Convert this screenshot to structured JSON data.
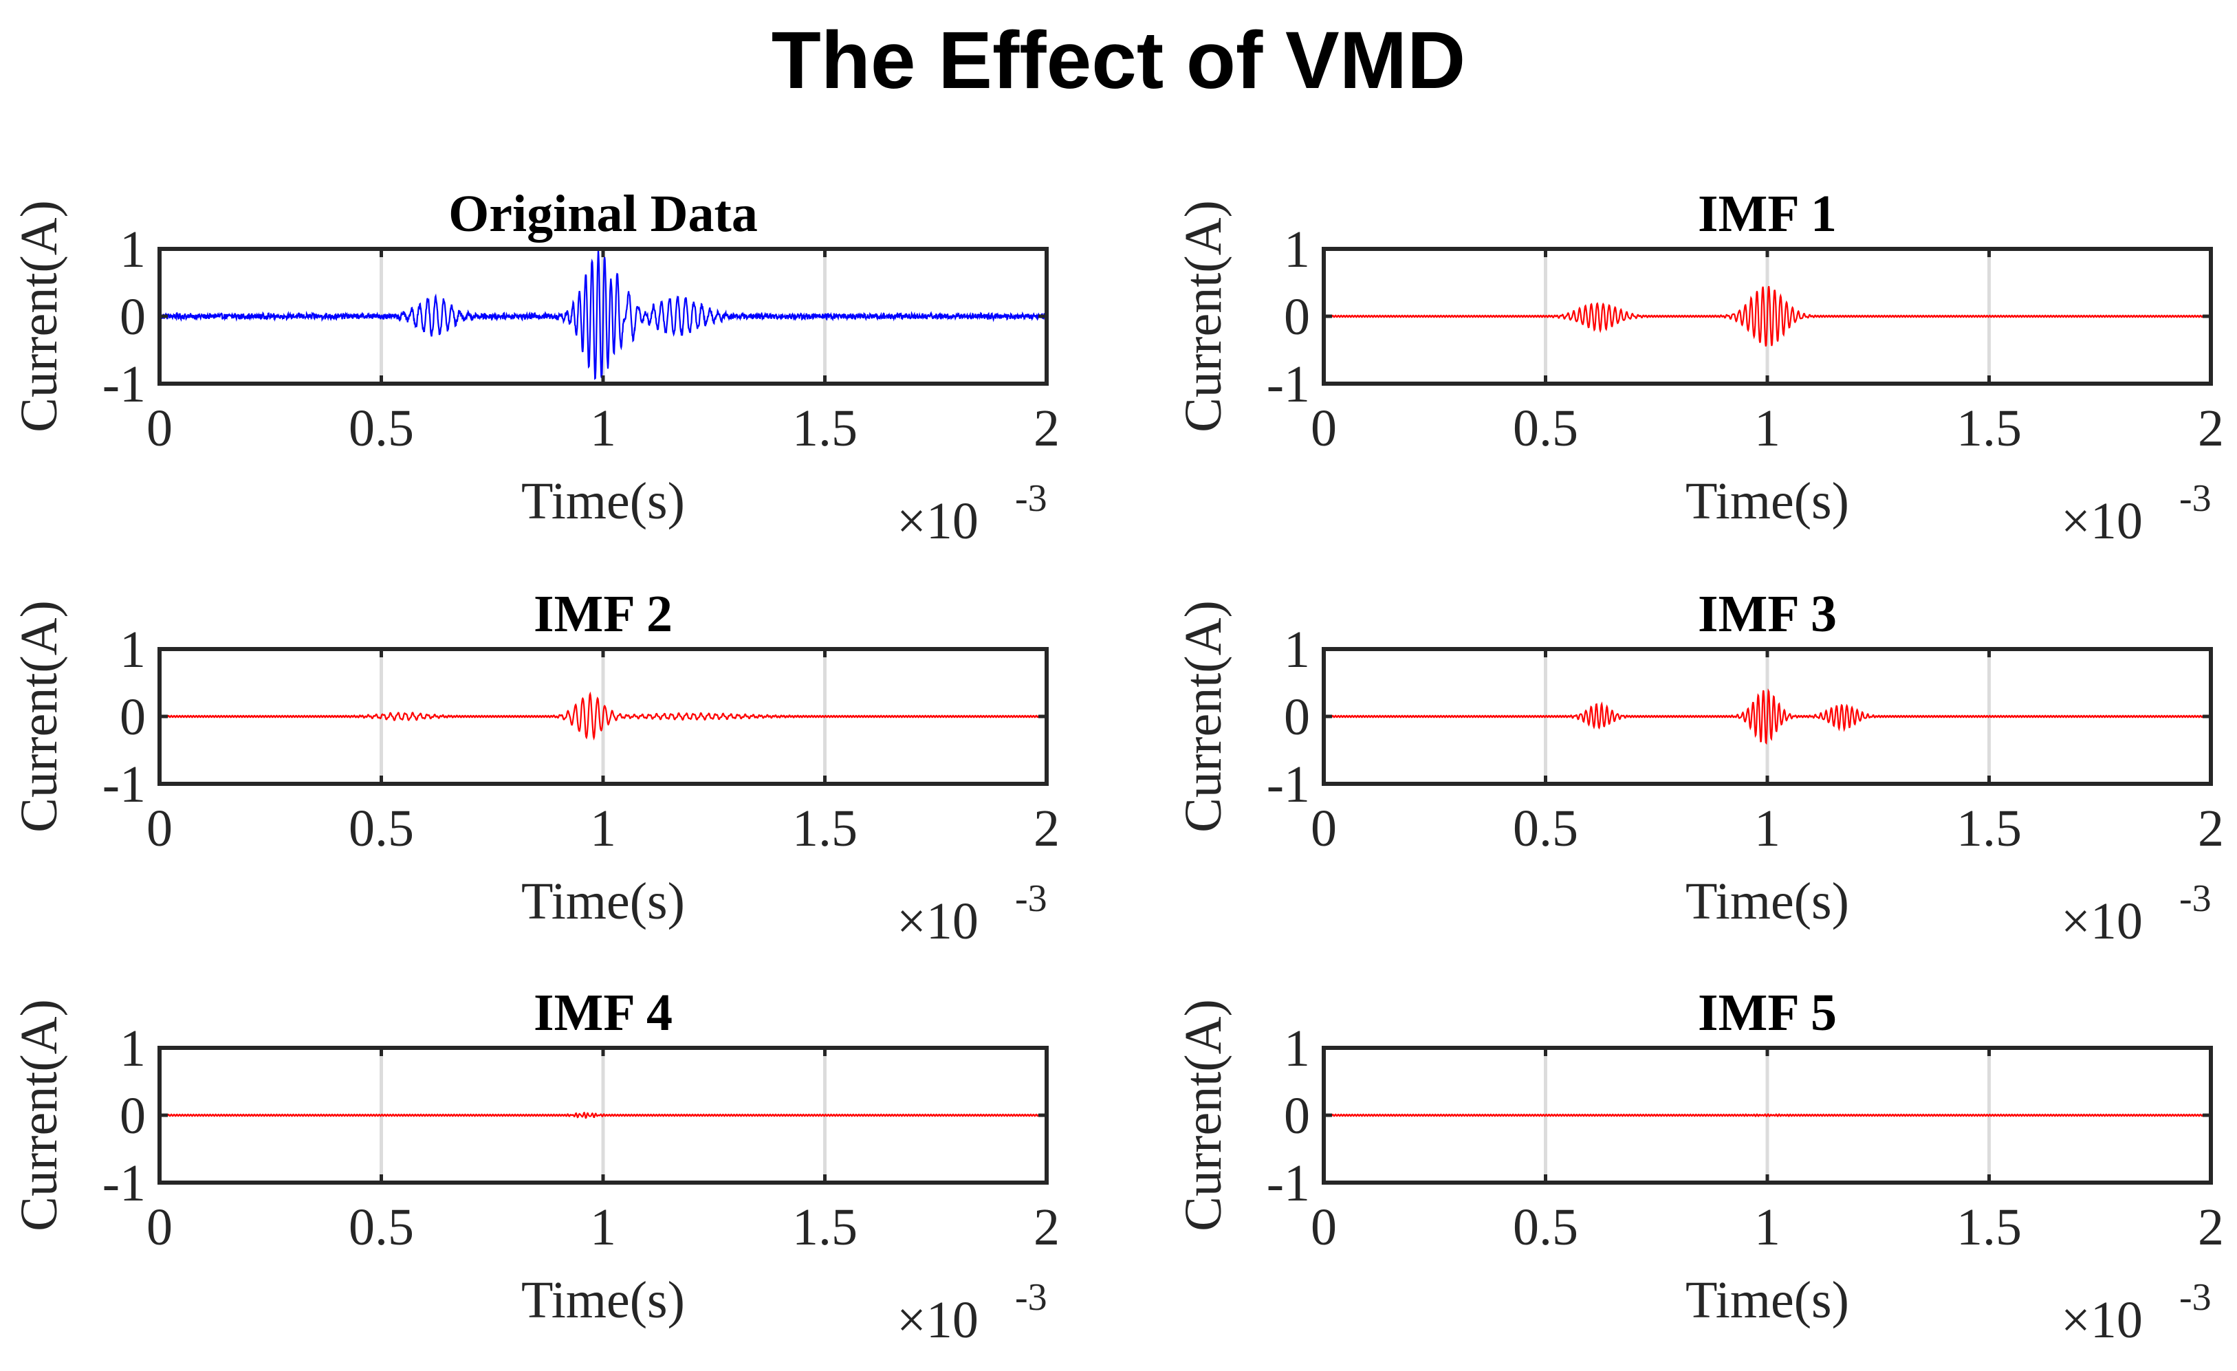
{
  "figure": {
    "title": "The Effect of VMD"
  },
  "chart_data": [
    {
      "type": "line",
      "title": "Original Data",
      "xlabel": "Time(s)",
      "ylabel": "Current(A)",
      "x_multiplier_label": "×10",
      "x_multiplier_exp": "-3",
      "xlim": [
        0,
        2
      ],
      "ylim": [
        -1,
        1
      ],
      "xticks": [
        0,
        0.5,
        1,
        1.5,
        2
      ],
      "xtick_labels": [
        "0",
        "0.5",
        "1",
        "1.5",
        "2"
      ],
      "yticks": [
        -1,
        0,
        1
      ],
      "ytick_labels": [
        "-1",
        "0",
        "1"
      ],
      "grid": "x-only",
      "series": [
        {
          "name": "Original Data",
          "color": "#0000ff",
          "noise": 0.035,
          "packets": [
            [
              0.62,
              0.05,
              0.28,
              55
            ],
            [
              0.99,
              0.045,
              0.95,
              70
            ],
            [
              1.17,
              0.07,
              0.28,
              55
            ],
            [
              1.05,
              0.03,
              0.35,
              40
            ]
          ]
        }
      ]
    },
    {
      "type": "line",
      "title": "IMF 1",
      "xlabel": "Time(s)",
      "ylabel": "Current(A)",
      "x_multiplier_label": "×10",
      "x_multiplier_exp": "-3",
      "xlim": [
        0,
        2
      ],
      "ylim": [
        -1,
        1
      ],
      "xticks": [
        0,
        0.5,
        1,
        1.5,
        2
      ],
      "xtick_labels": [
        "0",
        "0.5",
        "1",
        "1.5",
        "2"
      ],
      "yticks": [
        -1,
        0,
        1
      ],
      "ytick_labels": [
        "-1",
        "0",
        "1"
      ],
      "grid": "x-only",
      "series": [
        {
          "name": "IMF 1",
          "color": "#ff0000",
          "noise": 0.0,
          "packets": [
            [
              0.62,
              0.055,
              0.2,
              75
            ],
            [
              1.0,
              0.05,
              0.45,
              75
            ]
          ]
        }
      ]
    },
    {
      "type": "line",
      "title": "IMF 2",
      "xlabel": "Time(s)",
      "ylabel": "Current(A)",
      "x_multiplier_label": "×10",
      "x_multiplier_exp": "-3",
      "xlim": [
        0,
        2
      ],
      "ylim": [
        -1,
        1
      ],
      "xticks": [
        0,
        0.5,
        1,
        1.5,
        2
      ],
      "xtick_labels": [
        "0",
        "0.5",
        "1",
        "1.5",
        "2"
      ],
      "yticks": [
        -1,
        0,
        1
      ],
      "ytick_labels": [
        "-1",
        "0",
        "1"
      ],
      "grid": "x-only",
      "series": [
        {
          "name": "IMF 2",
          "color": "#ff0000",
          "noise": 0.0,
          "packets": [
            [
              0.55,
              0.07,
              0.05,
              60
            ],
            [
              0.97,
              0.04,
              0.32,
              60
            ],
            [
              1.2,
              0.15,
              0.04,
              60
            ]
          ]
        }
      ]
    },
    {
      "type": "line",
      "title": "IMF 3",
      "xlabel": "Time(s)",
      "ylabel": "Current(A)",
      "x_multiplier_label": "×10",
      "x_multiplier_exp": "-3",
      "xlim": [
        0,
        2
      ],
      "ylim": [
        -1,
        1
      ],
      "xticks": [
        0,
        0.5,
        1,
        1.5,
        2
      ],
      "xtick_labels": [
        "0",
        "0.5",
        "1",
        "1.5",
        "2"
      ],
      "yticks": [
        -1,
        0,
        1
      ],
      "ytick_labels": [
        "-1",
        "0",
        "1"
      ],
      "grid": "x-only",
      "series": [
        {
          "name": "IMF 3",
          "color": "#ff0000",
          "noise": 0.0,
          "packets": [
            [
              0.62,
              0.035,
              0.18,
              85
            ],
            [
              0.995,
              0.035,
              0.4,
              85
            ],
            [
              1.17,
              0.04,
              0.18,
              85
            ]
          ]
        }
      ]
    },
    {
      "type": "line",
      "title": "IMF 4",
      "xlabel": "Time(s)",
      "ylabel": "Current(A)",
      "x_multiplier_label": "×10",
      "x_multiplier_exp": "-3",
      "xlim": [
        0,
        2
      ],
      "ylim": [
        -1,
        1
      ],
      "xticks": [
        0,
        0.5,
        1,
        1.5,
        2
      ],
      "xtick_labels": [
        "0",
        "0.5",
        "1",
        "1.5",
        "2"
      ],
      "yticks": [
        -1,
        0,
        1
      ],
      "ytick_labels": [
        "-1",
        "0",
        "1"
      ],
      "grid": "x-only",
      "series": [
        {
          "name": "IMF 4",
          "color": "#ff0000",
          "noise": 0.0,
          "packets": [
            [
              0.96,
              0.03,
              0.03,
              110
            ]
          ]
        }
      ]
    },
    {
      "type": "line",
      "title": "IMF 5",
      "xlabel": "Time(s)",
      "ylabel": "Current(A)",
      "x_multiplier_label": "×10",
      "x_multiplier_exp": "-3",
      "xlim": [
        0,
        2
      ],
      "ylim": [
        -1,
        1
      ],
      "xticks": [
        0,
        0.5,
        1,
        1.5,
        2
      ],
      "xtick_labels": [
        "0",
        "0.5",
        "1",
        "1.5",
        "2"
      ],
      "yticks": [
        -1,
        0,
        1
      ],
      "ytick_labels": [
        "-1",
        "0",
        "1"
      ],
      "grid": "x-only",
      "series": [
        {
          "name": "IMF 5",
          "color": "#ff0000",
          "noise": 0.0,
          "packets": [
            [
              1.0,
              0.05,
              0.005,
              120
            ]
          ]
        }
      ]
    }
  ]
}
